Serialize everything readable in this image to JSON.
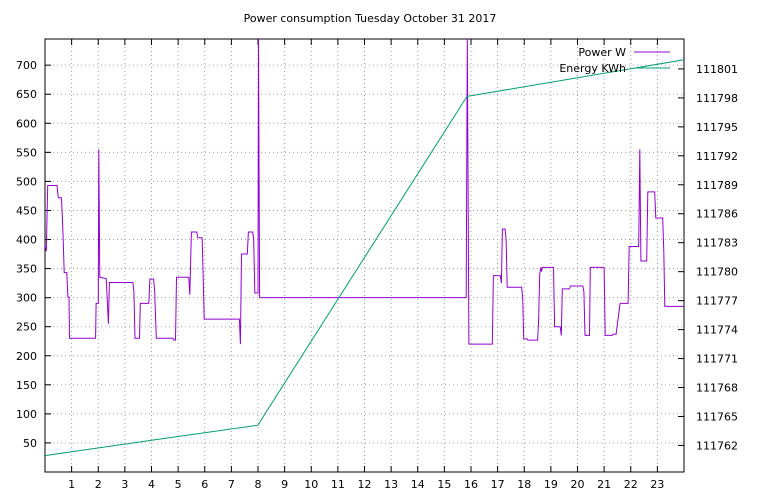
{
  "chart_data": {
    "type": "line",
    "title": "Power consumption Tuesday October 31 2017",
    "xlabel": "",
    "ylabel": "",
    "xlim": [
      0,
      24
    ],
    "ylim": [
      0,
      745
    ],
    "y2lim": [
      111759.25,
      111804.1
    ],
    "grid": true,
    "legend": "top-right",
    "x_ticks": [
      1,
      2,
      3,
      4,
      5,
      6,
      7,
      8,
      9,
      10,
      11,
      12,
      13,
      14,
      15,
      16,
      17,
      18,
      19,
      20,
      21,
      22,
      23
    ],
    "y_ticks": [
      50,
      100,
      150,
      200,
      250,
      300,
      350,
      400,
      450,
      500,
      550,
      600,
      650,
      700
    ],
    "y2_ticks": [
      111762,
      111765,
      111768,
      111771,
      111774,
      111777,
      111780,
      111783,
      111786,
      111789,
      111792,
      111795,
      111798,
      111801
    ],
    "colors": {
      "power": "#9400d3",
      "energy": "#009e73"
    },
    "series": [
      {
        "name": "Power W",
        "axis": "left",
        "color": "#9400d3",
        "points": [
          [
            0.0,
            390
          ],
          [
            0.05,
            380
          ],
          [
            0.1,
            493
          ],
          [
            0.45,
            493
          ],
          [
            0.5,
            472
          ],
          [
            0.62,
            472
          ],
          [
            0.68,
            405
          ],
          [
            0.72,
            343
          ],
          [
            0.82,
            343
          ],
          [
            0.86,
            301
          ],
          [
            0.9,
            301
          ],
          [
            0.92,
            230
          ],
          [
            1.9,
            230
          ],
          [
            1.92,
            290
          ],
          [
            2.0,
            290
          ],
          [
            2.02,
            555
          ],
          [
            2.06,
            335
          ],
          [
            2.3,
            333
          ],
          [
            2.34,
            296
          ],
          [
            2.38,
            255
          ],
          [
            2.42,
            326
          ],
          [
            3.3,
            326
          ],
          [
            3.34,
            310
          ],
          [
            3.38,
            230
          ],
          [
            3.55,
            230
          ],
          [
            3.58,
            290
          ],
          [
            3.9,
            290
          ],
          [
            3.94,
            332
          ],
          [
            4.08,
            332
          ],
          [
            4.12,
            310
          ],
          [
            4.18,
            230
          ],
          [
            4.8,
            230
          ],
          [
            4.84,
            227
          ],
          [
            4.9,
            227
          ],
          [
            4.94,
            335
          ],
          [
            5.4,
            335
          ],
          [
            5.44,
            305
          ],
          [
            5.5,
            413
          ],
          [
            5.7,
            413
          ],
          [
            5.74,
            403
          ],
          [
            5.9,
            403
          ],
          [
            5.94,
            335
          ],
          [
            5.98,
            263
          ],
          [
            7.3,
            263
          ],
          [
            7.34,
            220
          ],
          [
            7.38,
            375
          ],
          [
            7.6,
            375
          ],
          [
            7.64,
            413
          ],
          [
            7.8,
            413
          ],
          [
            7.84,
            400
          ],
          [
            7.88,
            308
          ],
          [
            8.0,
            308
          ],
          [
            8.02,
            745
          ],
          [
            8.06,
            300
          ],
          [
            8.1,
            300
          ],
          [
            15.82,
            300
          ],
          [
            15.86,
            745
          ],
          [
            15.92,
            220
          ],
          [
            16.8,
            220
          ],
          [
            16.84,
            338
          ],
          [
            17.1,
            338
          ],
          [
            17.14,
            325
          ],
          [
            17.18,
            418
          ],
          [
            17.28,
            418
          ],
          [
            17.32,
            400
          ],
          [
            17.36,
            318
          ],
          [
            17.9,
            318
          ],
          [
            17.94,
            300
          ],
          [
            17.98,
            229
          ],
          [
            18.1,
            229
          ],
          [
            18.14,
            227
          ],
          [
            18.5,
            227
          ],
          [
            18.54,
            260
          ],
          [
            18.58,
            340
          ],
          [
            18.62,
            352
          ],
          [
            18.65,
            345
          ],
          [
            18.68,
            352
          ],
          [
            19.1,
            352
          ],
          [
            19.14,
            250
          ],
          [
            19.35,
            250
          ],
          [
            19.39,
            235
          ],
          [
            19.43,
            315
          ],
          [
            19.7,
            315
          ],
          [
            19.74,
            320
          ],
          [
            20.2,
            320
          ],
          [
            20.24,
            310
          ],
          [
            20.28,
            235
          ],
          [
            20.45,
            235
          ],
          [
            20.48,
            352
          ],
          [
            21.0,
            352
          ],
          [
            21.04,
            235
          ],
          [
            21.3,
            235
          ],
          [
            21.34,
            237
          ],
          [
            21.45,
            237
          ],
          [
            21.5,
            255
          ],
          [
            21.6,
            290
          ],
          [
            21.9,
            290
          ],
          [
            21.94,
            388
          ],
          [
            22.3,
            388
          ],
          [
            22.34,
            555
          ],
          [
            22.38,
            363
          ],
          [
            22.6,
            363
          ],
          [
            22.64,
            482
          ],
          [
            22.9,
            482
          ],
          [
            22.94,
            437
          ],
          [
            23.2,
            437
          ],
          [
            23.24,
            380
          ],
          [
            23.28,
            285
          ],
          [
            24.0,
            285
          ]
        ]
      },
      {
        "name": "Energy KWh",
        "axis": "right",
        "color": "#009e73",
        "points": [
          [
            0.0,
            111760.95
          ],
          [
            4.0,
            111762.53
          ],
          [
            8.0,
            111764.1
          ],
          [
            8.2,
            111765.0
          ],
          [
            15.85,
            111798.15
          ],
          [
            24.0,
            111801.95
          ]
        ]
      }
    ]
  }
}
